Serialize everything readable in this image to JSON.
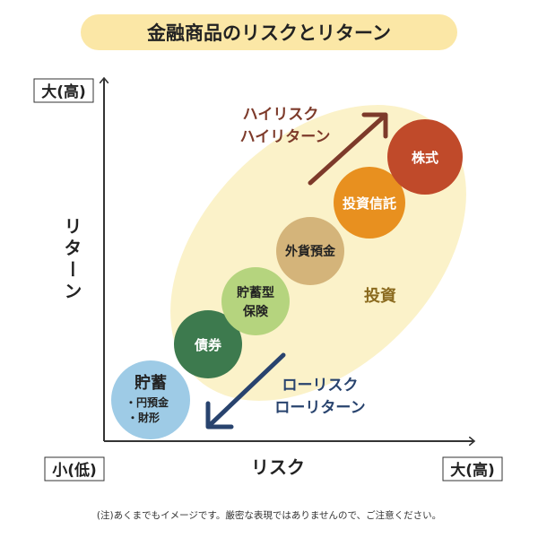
{
  "title": "金融商品のリスクとリターン",
  "axes": {
    "y_high": "大(高)",
    "x_low": "小(低)",
    "x_high": "大(高)",
    "y_name": "リターン",
    "x_name": "リスク"
  },
  "products": {
    "savings": {
      "label": "貯蓄",
      "items": [
        "・円預金",
        "・財形"
      ],
      "color": "#9ecbe6"
    },
    "bonds": {
      "label": "債券",
      "color": "#3d7a4e"
    },
    "insurance": {
      "line1": "貯蓄型",
      "line2": "保険",
      "color": "#b5d47e"
    },
    "foreign_deposit": {
      "label": "外貨預金",
      "color": "#d4b47a"
    },
    "trust": {
      "label": "投資信託",
      "color": "#e8901f"
    },
    "stocks": {
      "label": "株式",
      "color": "#c04a2a"
    }
  },
  "investment_label": "投資",
  "high_risk": {
    "line1": "ハイリスク",
    "line2": "ハイリターン",
    "color": "#7d3a2a"
  },
  "low_risk": {
    "line1": "ローリスク",
    "line2": "ローリターン",
    "color": "#28436e"
  },
  "note": "(注)あくまでもイメージです。厳密な表現ではありませんので、ご注意ください。",
  "colors": {
    "title_bg": "#fbe7a6",
    "invest_area": "#fbf2c9",
    "axis": "#333333"
  }
}
